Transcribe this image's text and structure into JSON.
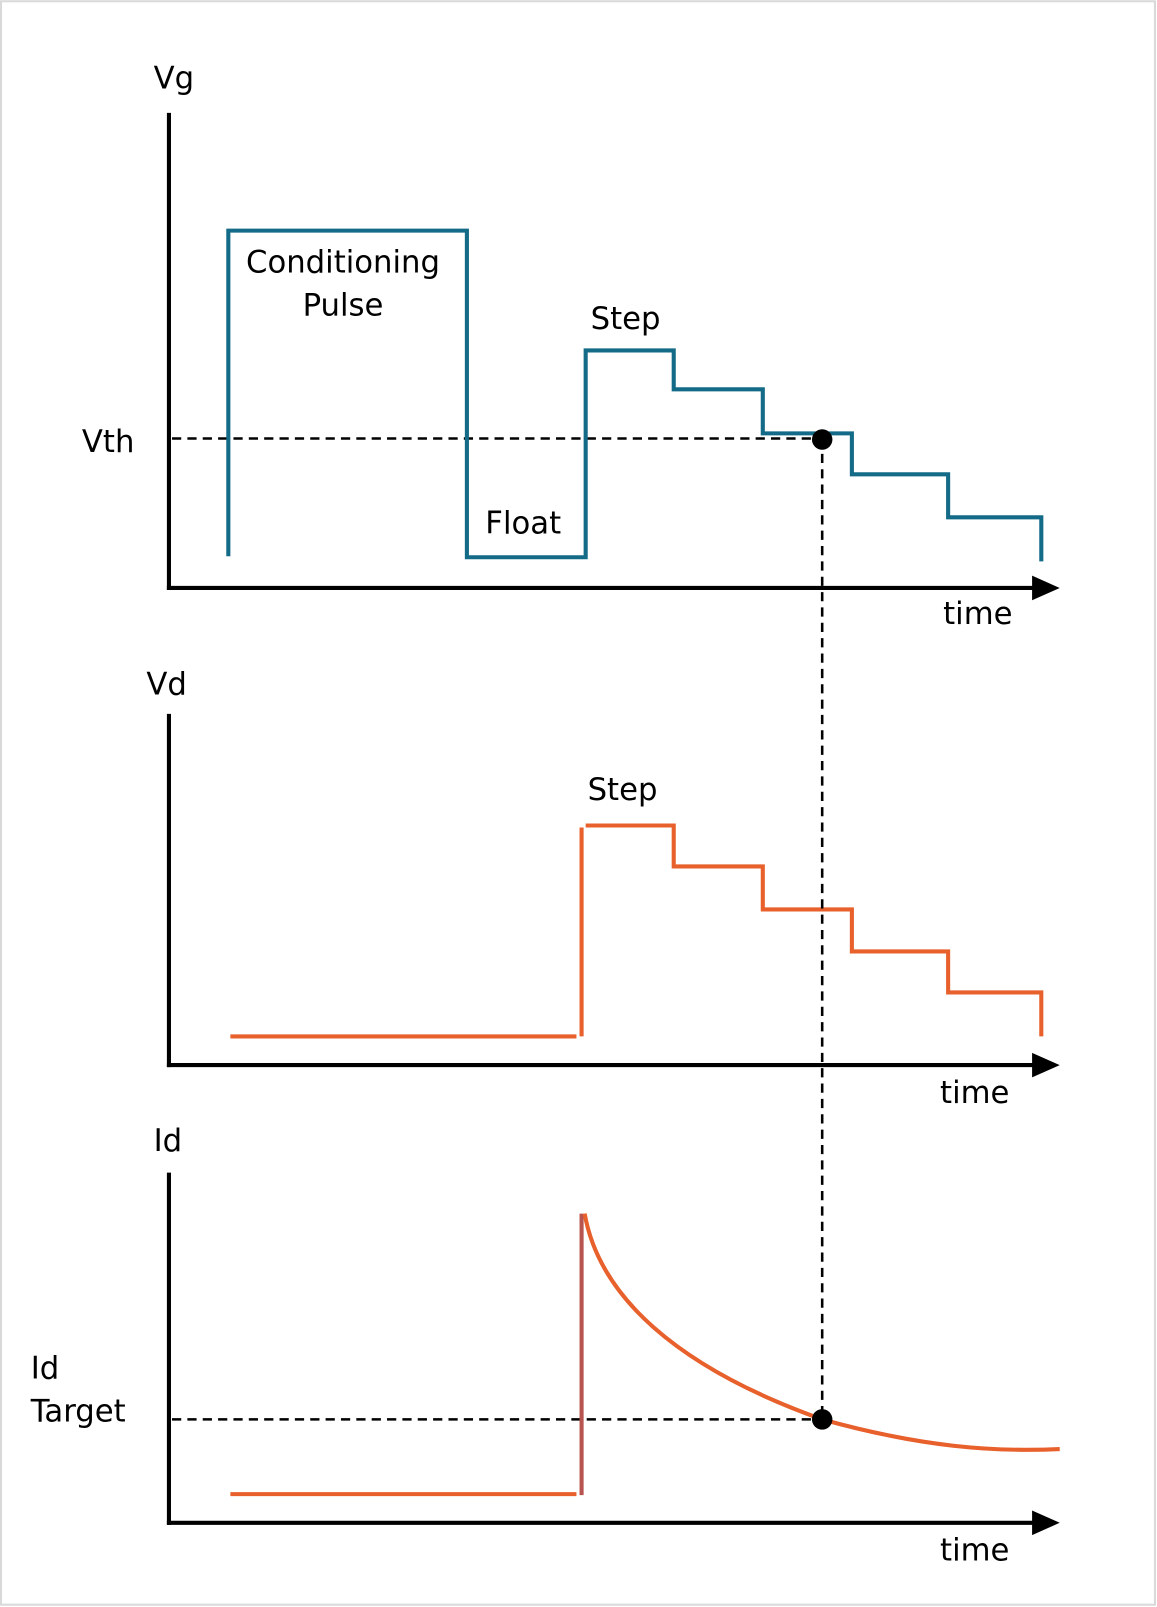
{
  "colors": {
    "vg_trace": "#136b87",
    "vd_trace": "#e8602c",
    "id_trace": "#e8602c",
    "id_rise": "#b85450",
    "axes": "#000000",
    "frame": "#d9d9d9"
  },
  "panels": {
    "vg": {
      "axis_label": "Vg",
      "x_label": "time",
      "level_label": "Vth",
      "annotations": {
        "conditioning_line1": "Conditioning",
        "conditioning_line2": "Pulse",
        "step": "Step",
        "float": "Float"
      }
    },
    "vd": {
      "axis_label": "Vd",
      "x_label": "time",
      "annotations": {
        "step": "Step"
      }
    },
    "id": {
      "axis_label": "Id",
      "x_label": "time",
      "target_line1": "Id",
      "target_line2": "Target"
    }
  }
}
